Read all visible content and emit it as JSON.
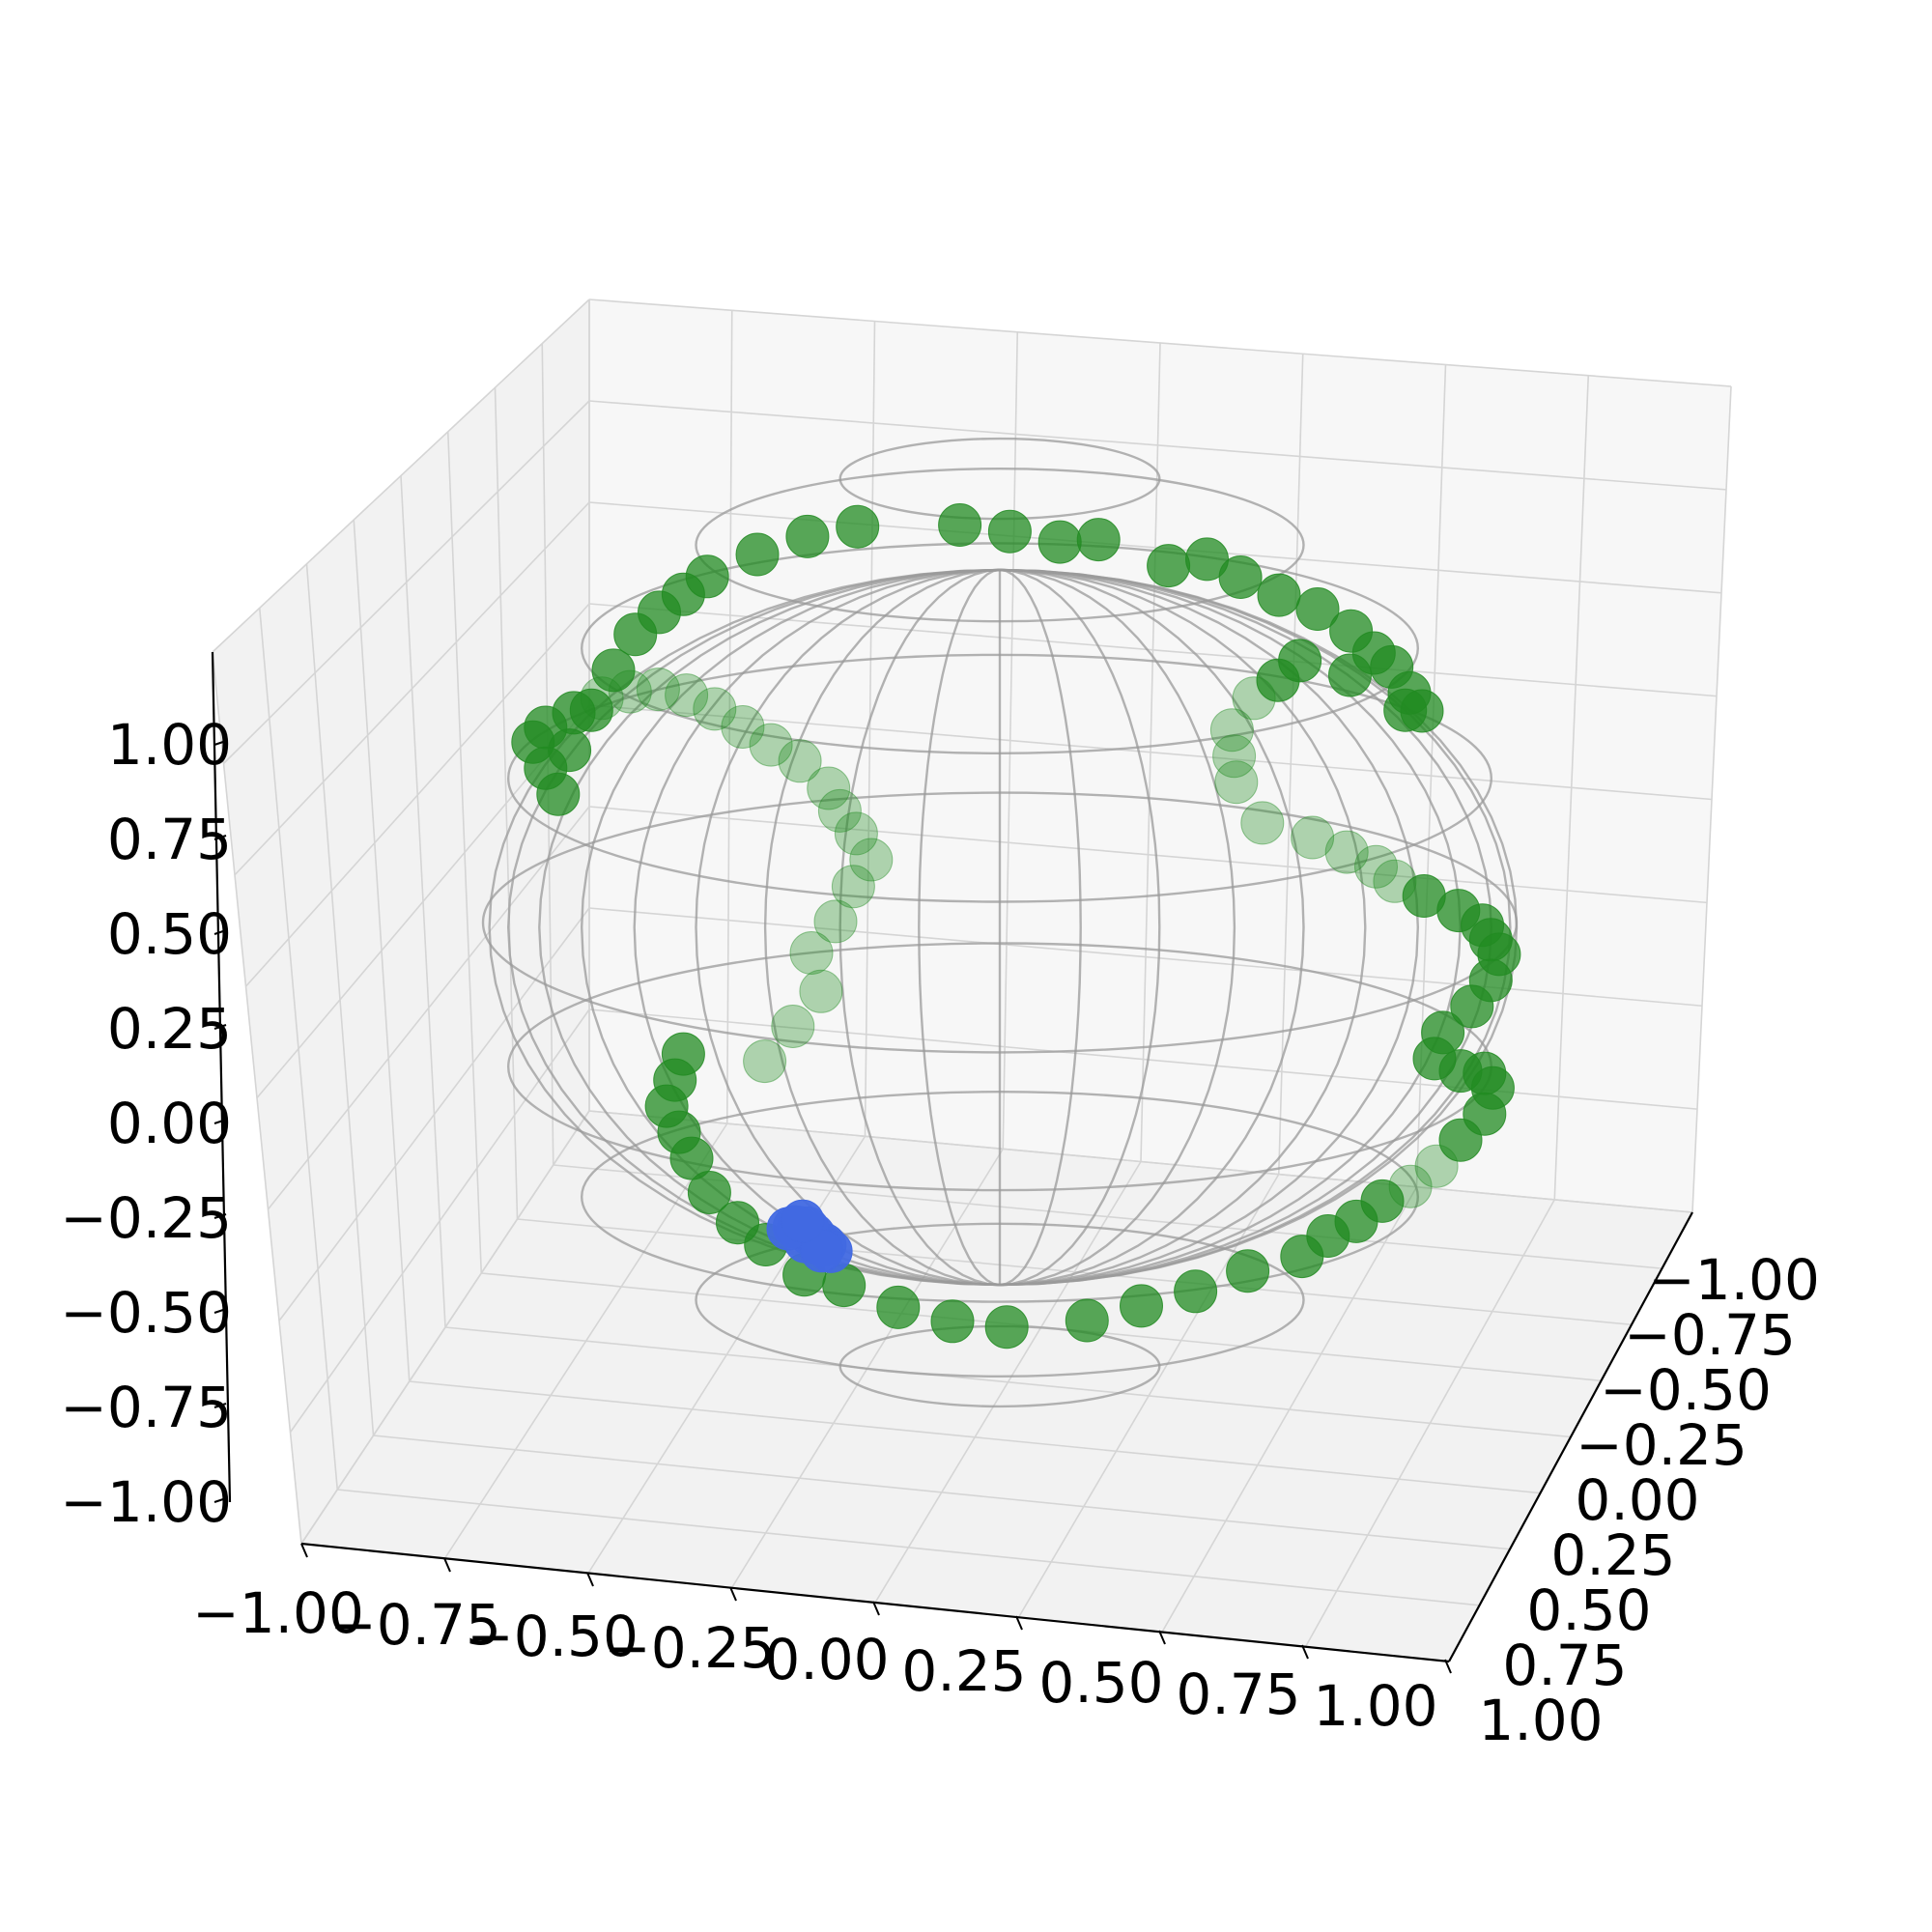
{
  "chart_data": {
    "type": "scatter",
    "projection": "3d",
    "view": {
      "elevation_deg": 15,
      "azimuth_deg": -80
    },
    "grid": true,
    "xlim": [
      -1.0,
      1.0
    ],
    "ylim": [
      -1.0,
      1.0
    ],
    "zlim": [
      -1.0,
      1.0
    ],
    "x_ticks": [
      "−1.00",
      "−0.75",
      "−0.50",
      "−0.25",
      "0.00",
      "0.25",
      "0.50",
      "0.75",
      "1.00"
    ],
    "y_ticks": [
      "−1.00",
      "−0.75",
      "−0.50",
      "−0.25",
      "0.00",
      "0.25",
      "0.50",
      "0.75",
      "1.00"
    ],
    "z_ticks": [
      "−1.00",
      "−0.75",
      "−0.50",
      "−0.25",
      "0.00",
      "0.25",
      "0.50",
      "0.75",
      "1.00"
    ],
    "wireframe": {
      "shape": "unit sphere",
      "color": "#9a9a9a"
    },
    "series": [
      {
        "color": "#228b22",
        "marker": "circle",
        "description_path": "trajectory on the unit sphere",
        "points": [
          [
            -0.05,
            -0.45,
            0.85
          ],
          [
            0.05,
            -0.5,
            0.82
          ],
          [
            0.15,
            -0.55,
            0.78
          ],
          [
            0.22,
            -0.5,
            0.8
          ],
          [
            0.35,
            -0.45,
            0.75
          ],
          [
            0.42,
            -0.4,
            0.78
          ],
          [
            0.48,
            -0.35,
            0.75
          ],
          [
            0.55,
            -0.3,
            0.72
          ],
          [
            0.62,
            -0.25,
            0.7
          ],
          [
            0.68,
            -0.2,
            0.66
          ],
          [
            0.72,
            -0.15,
            0.62
          ],
          [
            0.75,
            -0.1,
            0.6
          ],
          [
            0.78,
            -0.05,
            0.55
          ],
          [
            0.8,
            0.0,
            0.52
          ],
          [
            0.76,
            0.1,
            0.55
          ],
          [
            0.65,
            0.15,
            0.65
          ],
          [
            0.55,
            0.2,
            0.7
          ],
          [
            0.5,
            0.3,
            0.68
          ],
          [
            0.45,
            0.35,
            0.65
          ],
          [
            0.4,
            0.45,
            0.6
          ],
          [
            0.4,
            0.5,
            0.55
          ],
          [
            0.4,
            0.55,
            0.5
          ],
          [
            0.45,
            0.55,
            0.4
          ],
          [
            0.55,
            0.5,
            0.35
          ],
          [
            0.62,
            0.45,
            0.3
          ],
          [
            0.68,
            0.4,
            0.25
          ],
          [
            0.72,
            0.35,
            0.2
          ],
          [
            0.78,
            0.3,
            0.15
          ],
          [
            0.85,
            0.25,
            0.1
          ],
          [
            0.9,
            0.2,
            0.05
          ],
          [
            0.92,
            0.15,
            0.0
          ],
          [
            0.94,
            0.1,
            -0.05
          ],
          [
            0.92,
            0.15,
            -0.1
          ],
          [
            0.88,
            0.2,
            -0.15
          ],
          [
            0.82,
            0.25,
            -0.2
          ],
          [
            0.8,
            0.3,
            -0.25
          ],
          [
            0.85,
            0.3,
            -0.28
          ],
          [
            0.9,
            0.25,
            -0.3
          ],
          [
            0.92,
            0.2,
            -0.35
          ],
          [
            0.9,
            0.25,
            -0.4
          ],
          [
            0.85,
            0.3,
            -0.45
          ],
          [
            0.8,
            0.35,
            -0.5
          ],
          [
            0.75,
            0.35,
            -0.55
          ],
          [
            0.7,
            0.3,
            -0.6
          ],
          [
            0.65,
            0.3,
            -0.65
          ],
          [
            0.6,
            0.25,
            -0.7
          ],
          [
            0.55,
            0.25,
            -0.75
          ],
          [
            0.45,
            0.2,
            -0.8
          ],
          [
            0.35,
            0.2,
            -0.85
          ],
          [
            0.25,
            0.15,
            -0.9
          ],
          [
            0.15,
            0.1,
            -0.95
          ],
          [
            0.0,
            0.05,
            -0.98
          ],
          [
            -0.1,
            0.0,
            -0.98
          ],
          [
            -0.2,
            -0.05,
            -0.96
          ],
          [
            -0.3,
            -0.1,
            -0.92
          ],
          [
            -0.38,
            -0.05,
            -0.88
          ],
          [
            -0.45,
            -0.1,
            -0.82
          ],
          [
            -0.5,
            -0.15,
            -0.78
          ],
          [
            -0.55,
            -0.2,
            -0.72
          ],
          [
            -0.58,
            -0.25,
            -0.65
          ],
          [
            -0.6,
            -0.3,
            -0.6
          ],
          [
            -0.62,
            -0.35,
            -0.55
          ],
          [
            -0.6,
            -0.4,
            -0.5
          ],
          [
            -0.58,
            -0.45,
            -0.45
          ],
          [
            -0.5,
            0.5,
            -0.2
          ],
          [
            -0.45,
            0.55,
            -0.1
          ],
          [
            -0.4,
            0.6,
            0.0
          ],
          [
            -0.42,
            0.62,
            0.1
          ],
          [
            -0.38,
            0.7,
            0.2
          ],
          [
            -0.35,
            0.75,
            0.3
          ],
          [
            -0.32,
            0.8,
            0.38
          ],
          [
            -0.35,
            0.82,
            0.45
          ],
          [
            -0.38,
            0.8,
            0.5
          ],
          [
            -0.4,
            0.78,
            0.55
          ],
          [
            -0.45,
            0.72,
            0.6
          ],
          [
            -0.5,
            0.65,
            0.62
          ],
          [
            -0.55,
            0.6,
            0.65
          ],
          [
            -0.6,
            0.55,
            0.68
          ],
          [
            -0.65,
            0.5,
            0.7
          ],
          [
            -0.7,
            0.45,
            0.7
          ],
          [
            -0.75,
            0.4,
            0.68
          ],
          [
            -0.8,
            0.35,
            0.65
          ],
          [
            -0.85,
            0.3,
            0.6
          ],
          [
            -0.9,
            0.25,
            0.55
          ],
          [
            -0.92,
            0.2,
            0.5
          ],
          [
            -0.9,
            0.25,
            0.45
          ],
          [
            -0.88,
            0.3,
            0.4
          ],
          [
            -0.85,
            0.2,
            0.48
          ],
          [
            -0.8,
            0.1,
            0.55
          ],
          [
            -0.75,
            0.0,
            0.62
          ],
          [
            -0.7,
            -0.1,
            0.68
          ],
          [
            -0.65,
            -0.15,
            0.72
          ],
          [
            -0.6,
            -0.2,
            0.75
          ],
          [
            -0.55,
            -0.25,
            0.78
          ],
          [
            -0.45,
            -0.3,
            0.82
          ],
          [
            -0.35,
            -0.35,
            0.85
          ],
          [
            -0.25,
            -0.4,
            0.86
          ]
        ]
      },
      {
        "color": "#4169e1",
        "marker": "circle",
        "points": [
          [
            -0.35,
            -0.3,
            -0.85
          ],
          [
            -0.33,
            -0.28,
            -0.87
          ],
          [
            -0.37,
            -0.32,
            -0.84
          ],
          [
            -0.34,
            -0.33,
            -0.86
          ],
          [
            -0.36,
            -0.27,
            -0.86
          ],
          [
            -0.32,
            -0.31,
            -0.88
          ],
          [
            -0.38,
            -0.29,
            -0.83
          ],
          [
            -0.35,
            -0.35,
            -0.85
          ],
          [
            -0.31,
            -0.29,
            -0.89
          ],
          [
            -0.39,
            -0.31,
            -0.84
          ],
          [
            -0.33,
            -0.26,
            -0.88
          ],
          [
            -0.36,
            -0.34,
            -0.83
          ]
        ]
      }
    ]
  }
}
